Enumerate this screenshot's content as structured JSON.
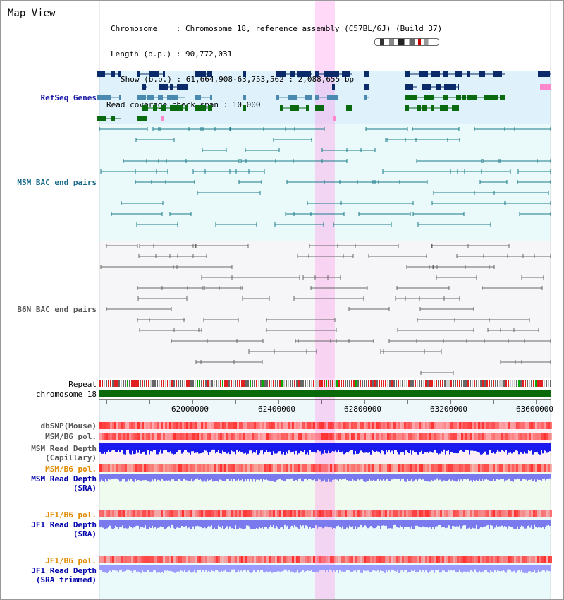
{
  "title": "Map View",
  "info": {
    "chromosome": "Chromosome    : Chromosome 18, reference assembly (C57BL/6J) (Build 37)",
    "length": "Length (b.p.) : 90,772,031",
    "show": "Show (b.p.) : 61,664,908-63,753,562 : 2,088,655 bp",
    "read_coverage": "Read coverage check span : 10,000"
  },
  "tracks": {
    "refseq": "RefSeq Genes",
    "msm_bac": "MSM BAC end pairs",
    "b6n_bac": "B6N BAC end pairs",
    "repeat": "Repeat",
    "chromosome": "chromosome 18",
    "dbsnp": "dbSNP(Mouse)",
    "msm_b6_pol_1": "MSM/B6 pol.",
    "msm_depth_cap_1": "MSM Read Depth",
    "msm_depth_cap_2": "(Capillary)",
    "msm_b6_pol_2": "MSM/B6 pol.",
    "msm_depth_sra_1": "MSM Read Depth",
    "msm_depth_sra_2": "(SRA)",
    "jf1_b6_pol_1": "JF1/B6 pol.",
    "jf1_depth_sra_1": "JF1 Read Depth",
    "jf1_depth_sra_2": "(SRA)",
    "jf1_b6_pol_2": "JF1/B6 pol.",
    "jf1_depth_trim_1": "JF1 Read Depth",
    "jf1_depth_trim_2": "(SRA trimmed)"
  },
  "axis": {
    "ticks": [
      "62000000",
      "62400000",
      "62800000",
      "63200000",
      "63600000"
    ]
  },
  "colors": {
    "refseq_label": "#1a1aa6",
    "msm_label": "#1a6a8a",
    "b6n_label": "#555555",
    "pol_label_orange": "#e08a00",
    "depth_label": "#0000aa",
    "gene_dark": "#0a2a6a",
    "gene_mid": "#4a8ab0",
    "gene_green": "#0a6a10",
    "chromosome_bar": "#0a6a0a",
    "highlight": "#ff8ce6"
  }
}
